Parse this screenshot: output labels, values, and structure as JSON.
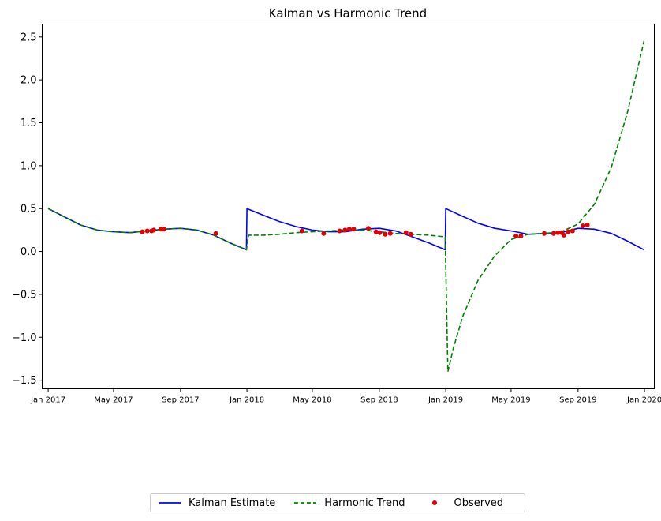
{
  "chart_data": {
    "type": "line",
    "title": "Kalman vs Harmonic Trend",
    "xlabel": "",
    "ylabel": "",
    "x_ticks": [
      "Jan 2017",
      "May 2017",
      "Sep 2017",
      "Jan 2018",
      "May 2018",
      "Sep 2018",
      "Jan 2019",
      "May 2019",
      "Sep 2019",
      "Jan 2020"
    ],
    "x_tick_values": [
      "2017-01-01",
      "2017-05-01",
      "2017-09-01",
      "2018-01-01",
      "2018-05-01",
      "2018-09-01",
      "2019-01-01",
      "2019-05-01",
      "2019-09-01",
      "2020-01-01"
    ],
    "xlim": [
      "2016-12-21",
      "2020-01-19"
    ],
    "ylim": [
      -1.6,
      2.65
    ],
    "y_ticks": [
      "−1.5",
      "−1.0",
      "−0.5",
      "0.0",
      "0.5",
      "1.0",
      "1.5",
      "2.0",
      "2.5"
    ],
    "y_tick_values": [
      -1.5,
      -1.0,
      -0.5,
      0.0,
      0.5,
      1.0,
      1.5,
      2.0,
      2.5
    ],
    "grid": false,
    "legend_position": "bottom-center",
    "series": [
      {
        "name": "Kalman Estimate",
        "style": "solid",
        "color": "#0000ff",
        "x": [
          "2017-01-01",
          "2017-02-01",
          "2017-03-01",
          "2017-04-01",
          "2017-05-01",
          "2017-06-01",
          "2017-07-01",
          "2017-08-01",
          "2017-09-01",
          "2017-10-01",
          "2017-11-01",
          "2017-12-01",
          "2017-12-31",
          "2018-01-01",
          "2018-02-01",
          "2018-03-01",
          "2018-04-01",
          "2018-05-01",
          "2018-06-01",
          "2018-07-01",
          "2018-08-01",
          "2018-09-01",
          "2018-10-01",
          "2018-11-01",
          "2018-12-01",
          "2018-12-31",
          "2019-01-01",
          "2019-02-01",
          "2019-03-01",
          "2019-04-01",
          "2019-05-01",
          "2019-05-10",
          "2019-06-01",
          "2019-07-01",
          "2019-08-01",
          "2019-09-01",
          "2019-10-01",
          "2019-11-01",
          "2019-12-01",
          "2019-12-31"
        ],
        "y": [
          0.5,
          0.4,
          0.31,
          0.25,
          0.23,
          0.22,
          0.24,
          0.26,
          0.27,
          0.25,
          0.19,
          0.1,
          0.02,
          0.5,
          0.42,
          0.35,
          0.29,
          0.25,
          0.23,
          0.23,
          0.26,
          0.27,
          0.24,
          0.17,
          0.1,
          0.02,
          0.5,
          0.41,
          0.33,
          0.27,
          0.24,
          0.23,
          0.2,
          0.21,
          0.22,
          0.27,
          0.26,
          0.21,
          0.12,
          0.02
        ]
      },
      {
        "name": "Harmonic Trend",
        "style": "dashed",
        "color": "#008000",
        "x": [
          "2017-01-01",
          "2017-02-01",
          "2017-03-01",
          "2017-04-01",
          "2017-05-01",
          "2017-06-01",
          "2017-07-01",
          "2017-08-01",
          "2017-09-01",
          "2017-10-01",
          "2017-11-01",
          "2017-12-01",
          "2017-12-31",
          "2018-01-04",
          "2018-02-01",
          "2018-03-01",
          "2018-04-01",
          "2018-05-01",
          "2018-06-01",
          "2018-07-01",
          "2018-08-01",
          "2018-09-01",
          "2018-10-01",
          "2018-11-01",
          "2018-12-01",
          "2018-12-31",
          "2019-01-05",
          "2019-01-15",
          "2019-02-01",
          "2019-03-01",
          "2019-04-01",
          "2019-05-01",
          "2019-06-01",
          "2019-07-01",
          "2019-08-01",
          "2019-09-01",
          "2019-10-01",
          "2019-11-01",
          "2019-12-01",
          "2019-12-31"
        ],
        "y": [
          0.5,
          0.4,
          0.31,
          0.25,
          0.23,
          0.22,
          0.24,
          0.26,
          0.27,
          0.25,
          0.19,
          0.1,
          0.02,
          0.19,
          0.19,
          0.2,
          0.22,
          0.23,
          0.24,
          0.25,
          0.25,
          0.23,
          0.21,
          0.2,
          0.19,
          0.17,
          -1.4,
          -1.13,
          -0.76,
          -0.34,
          -0.05,
          0.14,
          0.2,
          0.21,
          0.23,
          0.32,
          0.55,
          0.98,
          1.63,
          2.45
        ]
      }
    ],
    "scatter": {
      "name": "Observed",
      "color": "#e00000",
      "x": [
        "2017-06-23",
        "2017-07-02",
        "2017-07-10",
        "2017-07-14",
        "2017-07-27",
        "2017-08-02",
        "2017-11-05",
        "2018-04-12",
        "2018-05-22",
        "2018-06-20",
        "2018-06-30",
        "2018-07-08",
        "2018-07-16",
        "2018-08-12",
        "2018-08-26",
        "2018-09-02",
        "2018-09-12",
        "2018-09-21",
        "2018-10-20",
        "2018-10-29",
        "2019-05-10",
        "2019-05-19",
        "2019-07-01",
        "2019-07-18",
        "2019-07-26",
        "2019-08-02",
        "2019-08-06",
        "2019-08-14",
        "2019-08-22",
        "2019-09-10",
        "2019-09-18"
      ],
      "y": [
        0.23,
        0.24,
        0.24,
        0.25,
        0.26,
        0.26,
        0.21,
        0.24,
        0.21,
        0.24,
        0.25,
        0.26,
        0.26,
        0.27,
        0.23,
        0.22,
        0.2,
        0.21,
        0.22,
        0.2,
        0.18,
        0.18,
        0.21,
        0.21,
        0.22,
        0.22,
        0.19,
        0.23,
        0.24,
        0.3,
        0.31
      ]
    }
  }
}
